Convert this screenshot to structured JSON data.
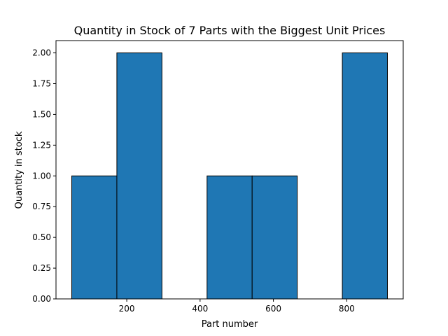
{
  "chart_data": {
    "type": "bar",
    "title": "Quantity in Stock of 7 Parts with the Biggest Unit Prices",
    "xlabel": "Part number",
    "ylabel": "Quantity in stock",
    "bins": [
      {
        "x0": 50,
        "x1": 173,
        "value": 1
      },
      {
        "x0": 173,
        "x1": 296,
        "value": 2
      },
      {
        "x0": 296,
        "x1": 419,
        "value": 0
      },
      {
        "x0": 419,
        "x1": 542,
        "value": 1
      },
      {
        "x0": 542,
        "x1": 665,
        "value": 1
      },
      {
        "x0": 665,
        "x1": 788,
        "value": 0
      },
      {
        "x0": 788,
        "x1": 911,
        "value": 2
      }
    ],
    "xlim": [
      7,
      954
    ],
    "ylim": [
      0,
      2.1
    ],
    "xticks": [
      200,
      400,
      600,
      800
    ],
    "xtick_labels": [
      "200",
      "400",
      "600",
      "800"
    ],
    "yticks": [
      0,
      0.25,
      0.5,
      0.75,
      1.0,
      1.25,
      1.5,
      1.75,
      2.0
    ],
    "ytick_labels": [
      "0.00",
      "0.25",
      "0.50",
      "0.75",
      "1.00",
      "1.25",
      "1.50",
      "1.75",
      "2.00"
    ],
    "grid": false,
    "bar_color": "#1f77b4",
    "edge_color": "#000000"
  }
}
